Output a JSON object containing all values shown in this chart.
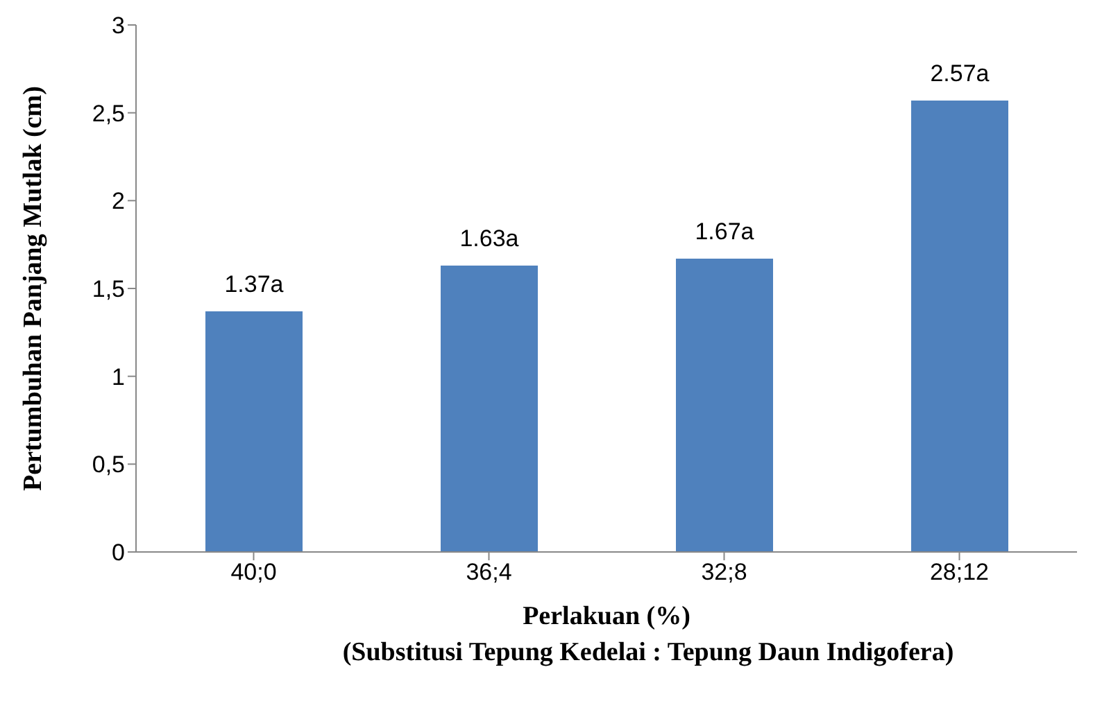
{
  "chart_data": {
    "type": "bar",
    "categories": [
      "40;0",
      "36;4",
      "32;8",
      "28;12"
    ],
    "values": [
      1.37,
      1.63,
      1.67,
      2.57
    ],
    "value_labels": [
      "1.37a",
      "1.63a",
      "1.67a",
      "2.57a"
    ],
    "color": "#4f81bd",
    "ylabel": "Pertumbuhan Panjang Mutlak (cm)",
    "xlabel": "Perlakuan (%)\n(Substitusi Tepung Kedelai : Tepung Daun Indigofera)",
    "ylim": [
      0,
      3
    ],
    "yticks": [
      0,
      {
        "value": 0.5,
        "label": "0,5"
      },
      1,
      {
        "value": 1.5,
        "label": "1,5"
      },
      2,
      {
        "value": 2.5,
        "label": "2,5"
      },
      3
    ],
    "grid": false,
    "legend": false
  }
}
